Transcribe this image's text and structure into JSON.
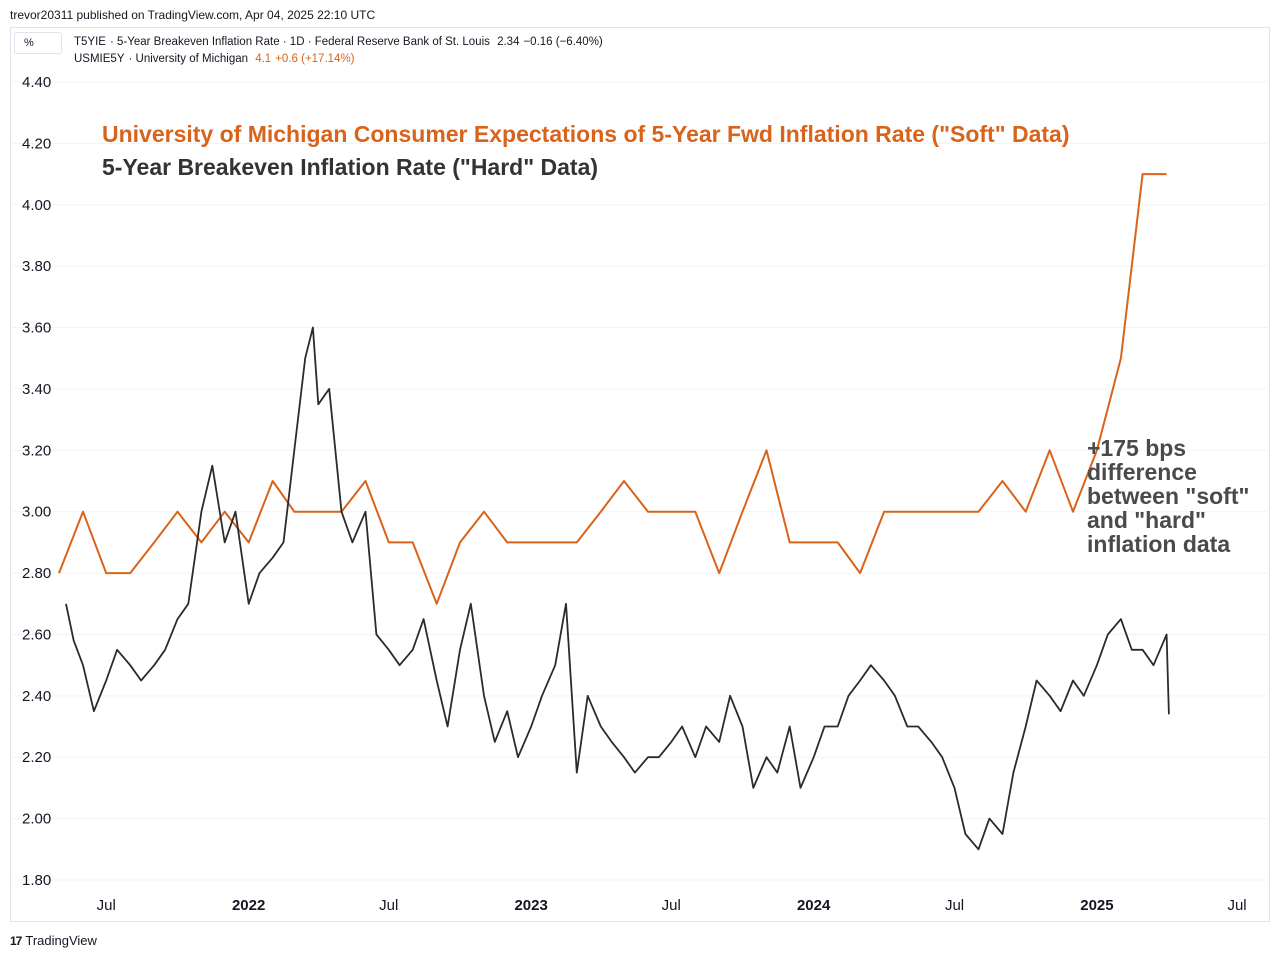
{
  "header": {
    "published": "trevor20311 published on TradingView.com, Apr 04, 2025 22:10 UTC",
    "unit_label": "%"
  },
  "legend": {
    "s1_ticker": "T5YIE",
    "s1_desc": "· 5-Year Breakeven Inflation Rate · 1D · Federal Reserve Bank of St. Louis",
    "s1_value": "2.34",
    "s1_change": "−0.16 (−6.40%)",
    "s2_ticker": "USMIE5Y",
    "s2_desc": "· University of Michigan",
    "s2_value": "4.1",
    "s2_change": "+0.6 (+17.14%)"
  },
  "footer": {
    "brand_mark": "17",
    "brand": "TradingView"
  },
  "colors": {
    "soft": "#d9631a",
    "hard": "#2b2b2b",
    "grid": "#f0f3fa",
    "border": "#e0e3eb"
  },
  "chart_data": {
    "type": "line",
    "title": "University of Michigan Consumer Expectations of 5-Year Fwd Inflation Rate (\"Soft\" Data)",
    "subtitle": "5-Year Breakeven Inflation Rate (\"Hard\" Data)",
    "annotation": [
      "+175 bps",
      "difference",
      "between \"soft\"",
      "and \"hard\"",
      "inflation data"
    ],
    "ylim": [
      1.8,
      4.4
    ],
    "xlim": [
      "2021-05-10",
      "2025-08-10"
    ],
    "yticks": [
      "4.40",
      "4.20",
      "4.00",
      "3.80",
      "3.60",
      "3.40",
      "3.20",
      "3.00",
      "2.80",
      "2.60",
      "2.40",
      "2.20",
      "2.00",
      "1.80"
    ],
    "xticks": [
      {
        "label": "Jul",
        "date": "2021-07-01",
        "bold": false
      },
      {
        "label": "2022",
        "date": "2022-01-01",
        "bold": true
      },
      {
        "label": "Jul",
        "date": "2022-07-01",
        "bold": false
      },
      {
        "label": "2023",
        "date": "2023-01-01",
        "bold": true
      },
      {
        "label": "Jul",
        "date": "2023-07-01",
        "bold": false
      },
      {
        "label": "2024",
        "date": "2024-01-01",
        "bold": true
      },
      {
        "label": "Jul",
        "date": "2024-07-01",
        "bold": false
      },
      {
        "label": "2025",
        "date": "2025-01-01",
        "bold": true
      },
      {
        "label": "Jul",
        "date": "2025-07-01",
        "bold": false
      }
    ],
    "series": [
      {
        "key": "soft",
        "x": [
          "2021-05-01",
          "2021-06-01",
          "2021-07-01",
          "2021-08-01",
          "2021-09-01",
          "2021-10-01",
          "2021-11-01",
          "2021-12-01",
          "2022-01-01",
          "2022-02-01",
          "2022-03-01",
          "2022-04-01",
          "2022-05-01",
          "2022-06-01",
          "2022-07-01",
          "2022-08-01",
          "2022-09-01",
          "2022-10-01",
          "2022-11-01",
          "2022-12-01",
          "2023-01-01",
          "2023-02-01",
          "2023-03-01",
          "2023-04-01",
          "2023-05-01",
          "2023-06-01",
          "2023-07-01",
          "2023-08-01",
          "2023-09-01",
          "2023-10-01",
          "2023-11-01",
          "2023-12-01",
          "2024-01-01",
          "2024-02-01",
          "2024-03-01",
          "2024-04-01",
          "2024-05-01",
          "2024-06-01",
          "2024-07-01",
          "2024-08-01",
          "2024-09-01",
          "2024-10-01",
          "2024-11-01",
          "2024-12-01",
          "2025-01-01",
          "2025-02-01",
          "2025-03-01",
          "2025-04-01"
        ],
        "values": [
          2.8,
          3.0,
          2.8,
          2.8,
          2.9,
          3.0,
          2.9,
          3.0,
          2.9,
          3.1,
          3.0,
          3.0,
          3.0,
          3.1,
          2.9,
          2.9,
          2.7,
          2.9,
          3.0,
          2.9,
          2.9,
          2.9,
          2.9,
          3.0,
          3.1,
          3.0,
          3.0,
          3.0,
          2.8,
          3.0,
          3.2,
          2.9,
          2.9,
          2.9,
          2.8,
          3.0,
          3.0,
          3.0,
          3.0,
          3.0,
          3.1,
          3.0,
          3.2,
          3.0,
          3.2,
          3.5,
          4.1,
          4.1
        ]
      },
      {
        "key": "hard",
        "x": [
          "2021-05-10",
          "2021-05-20",
          "2021-06-01",
          "2021-06-15",
          "2021-07-01",
          "2021-07-15",
          "2021-08-01",
          "2021-08-15",
          "2021-09-01",
          "2021-09-15",
          "2021-10-01",
          "2021-10-15",
          "2021-11-01",
          "2021-11-15",
          "2021-12-01",
          "2021-12-15",
          "2022-01-01",
          "2022-01-15",
          "2022-02-01",
          "2022-02-15",
          "2022-03-01",
          "2022-03-15",
          "2022-03-25",
          "2022-04-01",
          "2022-04-15",
          "2022-05-01",
          "2022-05-15",
          "2022-06-01",
          "2022-06-15",
          "2022-07-01",
          "2022-07-15",
          "2022-08-01",
          "2022-08-15",
          "2022-09-01",
          "2022-09-15",
          "2022-10-01",
          "2022-10-15",
          "2022-11-01",
          "2022-11-15",
          "2022-12-01",
          "2022-12-15",
          "2023-01-01",
          "2023-01-15",
          "2023-02-01",
          "2023-02-15",
          "2023-03-01",
          "2023-03-15",
          "2023-04-01",
          "2023-04-15",
          "2023-05-01",
          "2023-05-15",
          "2023-06-01",
          "2023-06-15",
          "2023-07-01",
          "2023-07-15",
          "2023-08-01",
          "2023-08-15",
          "2023-09-01",
          "2023-09-15",
          "2023-10-01",
          "2023-10-15",
          "2023-11-01",
          "2023-11-15",
          "2023-12-01",
          "2023-12-15",
          "2024-01-01",
          "2024-01-15",
          "2024-02-01",
          "2024-02-15",
          "2024-03-01",
          "2024-03-15",
          "2024-04-01",
          "2024-04-15",
          "2024-05-01",
          "2024-05-15",
          "2024-06-01",
          "2024-06-15",
          "2024-07-01",
          "2024-07-15",
          "2024-08-01",
          "2024-08-15",
          "2024-09-01",
          "2024-09-15",
          "2024-10-01",
          "2024-10-15",
          "2024-11-01",
          "2024-11-15",
          "2024-12-01",
          "2024-12-15",
          "2025-01-01",
          "2025-01-15",
          "2025-02-01",
          "2025-02-15",
          "2025-03-01",
          "2025-03-15",
          "2025-04-01",
          "2025-04-04"
        ],
        "values": [
          2.7,
          2.58,
          2.5,
          2.35,
          2.45,
          2.55,
          2.5,
          2.45,
          2.5,
          2.55,
          2.65,
          2.7,
          3.0,
          3.15,
          2.9,
          3.0,
          2.7,
          2.8,
          2.85,
          2.9,
          3.2,
          3.5,
          3.6,
          3.35,
          3.4,
          3.0,
          2.9,
          3.0,
          2.6,
          2.55,
          2.5,
          2.55,
          2.65,
          2.45,
          2.3,
          2.55,
          2.7,
          2.4,
          2.25,
          2.35,
          2.2,
          2.3,
          2.4,
          2.5,
          2.7,
          2.15,
          2.4,
          2.3,
          2.25,
          2.2,
          2.15,
          2.2,
          2.2,
          2.25,
          2.3,
          2.2,
          2.3,
          2.25,
          2.4,
          2.3,
          2.1,
          2.2,
          2.15,
          2.3,
          2.1,
          2.2,
          2.3,
          2.3,
          2.4,
          2.45,
          2.5,
          2.45,
          2.4,
          2.3,
          2.3,
          2.25,
          2.2,
          2.1,
          1.95,
          1.9,
          2.0,
          1.95,
          2.15,
          2.3,
          2.45,
          2.4,
          2.35,
          2.45,
          2.4,
          2.5,
          2.6,
          2.65,
          2.55,
          2.55,
          2.5,
          2.6,
          2.34
        ]
      }
    ]
  }
}
